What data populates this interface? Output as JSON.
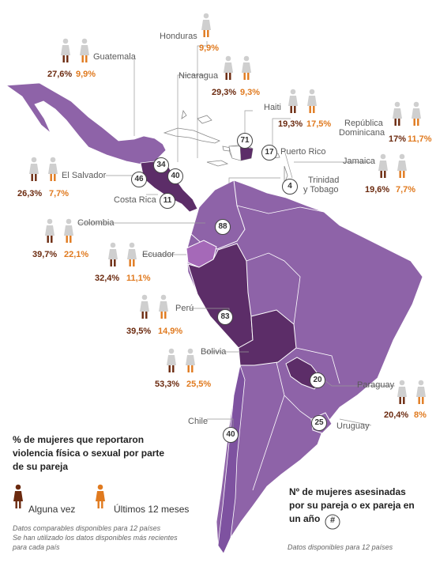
{
  "colors": {
    "land": "#8e63a8",
    "land_dark": "#5c2d68",
    "ecuador": "#a569b8",
    "ever": "#6b2a0f",
    "last12": "#e07a1f",
    "figure_grey": "#cfcfcf"
  },
  "countries": [
    {
      "id": "honduras",
      "name": "Honduras",
      "ever": "",
      "last12": "9,9%"
    },
    {
      "id": "guatemala",
      "name": "Guatemala",
      "ever": "27,6%",
      "last12": "9,9%"
    },
    {
      "id": "nicaragua",
      "name": "Nicaragua",
      "ever": "29,3%",
      "last12": "9,3%"
    },
    {
      "id": "haiti",
      "name": "Haiti",
      "ever": "19,3%",
      "last12": "17,5%"
    },
    {
      "id": "rep_dom",
      "name1": "República",
      "name2": "Dominicana",
      "ever": "17%",
      "last12": "11,7%"
    },
    {
      "id": "jamaica",
      "name": "Jamaica",
      "ever": "19,6%",
      "last12": "7,7%"
    },
    {
      "id": "el_salvador",
      "name": "El Salvador",
      "ever": "26,3%",
      "last12": "7,7%"
    },
    {
      "id": "colombia",
      "name": "Colombia",
      "ever": "39,7%",
      "last12": "22,1%"
    },
    {
      "id": "ecuador",
      "name": "Ecuador",
      "ever": "32,4%",
      "last12": "11,1%"
    },
    {
      "id": "peru",
      "name": "Perú",
      "ever": "39,5%",
      "last12": "14,9%"
    },
    {
      "id": "bolivia",
      "name": "Bolivia",
      "ever": "53,3%",
      "last12": "25,5%"
    },
    {
      "id": "paraguay",
      "name": "Paraguay",
      "ever": "20,4%",
      "last12": "8%"
    }
  ],
  "labels": {
    "puerto_rico": "Puerto Rico",
    "trinidad1": "Trinidad",
    "trinidad2": "y Tobago",
    "costa_rica": "Costa Rica",
    "chile": "Chile",
    "uruguay": "Uruguay"
  },
  "badges": [
    {
      "id": "mexico_pr",
      "value": "71"
    },
    {
      "id": "pr",
      "value": "17"
    },
    {
      "id": "trinidad",
      "value": "4"
    },
    {
      "id": "guatemala",
      "value": "34"
    },
    {
      "id": "el_salvador",
      "value": "46"
    },
    {
      "id": "honduras",
      "value": "40"
    },
    {
      "id": "costa_rica",
      "value": "11"
    },
    {
      "id": "colombia",
      "value": "88"
    },
    {
      "id": "peru",
      "value": "83"
    },
    {
      "id": "paraguay",
      "value": "20"
    },
    {
      "id": "uruguay",
      "value": "25"
    },
    {
      "id": "chile",
      "value": "40"
    }
  ],
  "legend": {
    "title1": "% de mujeres que reportaron",
    "title2": "violencia física o sexual por parte",
    "title3": "de su pareja",
    "ever_label": "Alguna vez",
    "last12_label": "Últimos 12 meses",
    "note1": "Datos comparables disponibles para 12 países",
    "note2": "Se han utilizado los datos disponibles más recientes",
    "note3": "para cada país"
  },
  "legend2": {
    "title1": "Nº de mujeres asesinadas",
    "title2": "por su pareja o ex pareja en",
    "title3": "un año",
    "symbol": "#",
    "note": "Datos disponibles para 12 países"
  }
}
